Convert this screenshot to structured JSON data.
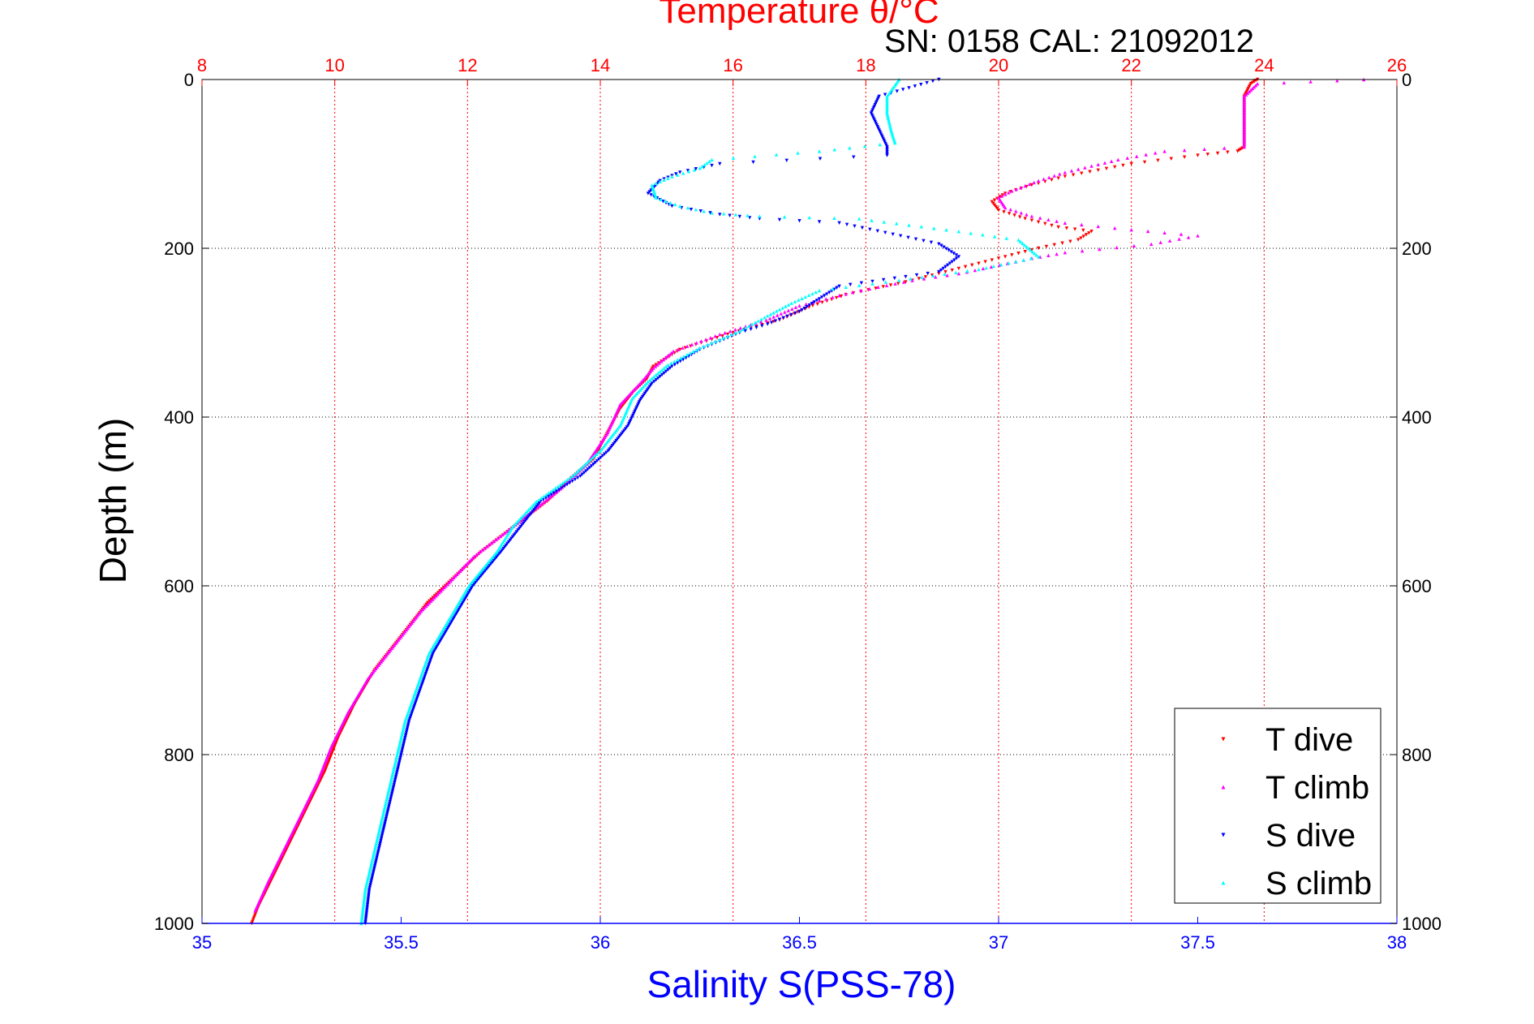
{
  "chart_data": {
    "type": "scatter",
    "title": "Temperature θ/°C",
    "subtitle": "SN: 0158  CAL: 21092012",
    "xlabel": "Salinity S(PSS-78)",
    "ylabel": "Depth (m)",
    "top_axis": {
      "label": "Temperature θ/°C",
      "range": [
        8,
        26
      ],
      "ticks": [
        "8",
        "10",
        "12",
        "14",
        "16",
        "18",
        "20",
        "22",
        "24",
        "26"
      ],
      "color": "#ff0000"
    },
    "bottom_axis": {
      "label": "Salinity S(PSS-78)",
      "range": [
        35,
        38
      ],
      "ticks": [
        "35",
        "35.5",
        "36",
        "36.5",
        "37",
        "37.5",
        "38"
      ],
      "color": "#0000ff"
    },
    "y_axis": {
      "range": [
        0,
        1000
      ],
      "reversed": true,
      "ticks": [
        "0",
        "200",
        "400",
        "600",
        "800",
        "1000"
      ]
    },
    "grid": true,
    "legend_placement": "bottom-right",
    "series": [
      {
        "name": "T dive",
        "axis": "top",
        "color": "#ff0000",
        "marker": "triangle-down",
        "points": [
          [
            23.9,
            0
          ],
          [
            23.8,
            5
          ],
          [
            23.7,
            20
          ],
          [
            23.7,
            40
          ],
          [
            23.7,
            60
          ],
          [
            23.7,
            80
          ],
          [
            23.6,
            85
          ],
          [
            23,
            90
          ],
          [
            22,
            100
          ],
          [
            21,
            115
          ],
          [
            20.5,
            125
          ],
          [
            20.1,
            135
          ],
          [
            19.9,
            145
          ],
          [
            20,
            155
          ],
          [
            20.4,
            165
          ],
          [
            20.9,
            175
          ],
          [
            21.4,
            180
          ],
          [
            21.2,
            190
          ],
          [
            20.6,
            200
          ],
          [
            20.1,
            210
          ],
          [
            19.6,
            220
          ],
          [
            19.2,
            228
          ],
          [
            18.6,
            240
          ],
          [
            17.7,
            255
          ],
          [
            17.2,
            268
          ],
          [
            16.7,
            285
          ],
          [
            16,
            300
          ],
          [
            15.2,
            320
          ],
          [
            14.8,
            340
          ],
          [
            14.7,
            355
          ],
          [
            14.5,
            370
          ],
          [
            14.3,
            390
          ],
          [
            14.1,
            420
          ],
          [
            13.9,
            450
          ],
          [
            13.6,
            470
          ],
          [
            13.2,
            500
          ],
          [
            12.7,
            530
          ],
          [
            12.2,
            560
          ],
          [
            11.8,
            590
          ],
          [
            11.4,
            620
          ],
          [
            11,
            660
          ],
          [
            10.6,
            700
          ],
          [
            10.3,
            740
          ],
          [
            10.05,
            780
          ],
          [
            9.85,
            820
          ],
          [
            9.6,
            860
          ],
          [
            9.35,
            900
          ],
          [
            9.1,
            940
          ],
          [
            8.85,
            980
          ],
          [
            8.75,
            1000
          ]
        ]
      },
      {
        "name": "T climb",
        "axis": "top",
        "color": "#ff00ff",
        "marker": "triangle-up",
        "points": [
          [
            25.5,
            0
          ],
          [
            23.9,
            5
          ],
          [
            23.7,
            20
          ],
          [
            23.7,
            40
          ],
          [
            23.7,
            60
          ],
          [
            23.7,
            80
          ],
          [
            22.5,
            85
          ],
          [
            21.8,
            95
          ],
          [
            21,
            110
          ],
          [
            20.6,
            120
          ],
          [
            20.2,
            132
          ],
          [
            20,
            140
          ],
          [
            20.1,
            152
          ],
          [
            20.5,
            162
          ],
          [
            21,
            170
          ],
          [
            22,
            178
          ],
          [
            23,
            185
          ],
          [
            22.3,
            195
          ],
          [
            21,
            205
          ],
          [
            20.5,
            212
          ],
          [
            19.4,
            230
          ],
          [
            18.7,
            238
          ],
          [
            17.8,
            252
          ],
          [
            17,
            268
          ],
          [
            16.5,
            285
          ],
          [
            15.8,
            302
          ],
          [
            15.1,
            322
          ],
          [
            14.8,
            342
          ],
          [
            14.6,
            360
          ],
          [
            14.3,
            385
          ],
          [
            14.1,
            420
          ],
          [
            13.8,
            455
          ],
          [
            13.4,
            485
          ],
          [
            13,
            510
          ],
          [
            12.6,
            535
          ],
          [
            12.1,
            565
          ],
          [
            11.7,
            598
          ],
          [
            11.3,
            630
          ],
          [
            10.9,
            670
          ],
          [
            10.5,
            710
          ],
          [
            10.2,
            750
          ],
          [
            9.95,
            790
          ],
          [
            9.75,
            830
          ],
          [
            9.5,
            870
          ],
          [
            9.25,
            910
          ],
          [
            9,
            950
          ],
          [
            8.8,
            985
          ]
        ]
      },
      {
        "name": "S dive",
        "axis": "bottom",
        "color": "#0000ff",
        "marker": "triangle-down",
        "points": [
          [
            36.85,
            0
          ],
          [
            36.7,
            20
          ],
          [
            36.68,
            40
          ],
          [
            36.7,
            60
          ],
          [
            36.72,
            80
          ],
          [
            36.72,
            90
          ],
          [
            36.3,
            100
          ],
          [
            36.2,
            110
          ],
          [
            36.15,
            120
          ],
          [
            36.12,
            135
          ],
          [
            36.18,
            150
          ],
          [
            36.3,
            160
          ],
          [
            36.4,
            165
          ],
          [
            36.6,
            170
          ],
          [
            36.85,
            195
          ],
          [
            36.9,
            210
          ],
          [
            36.85,
            228
          ],
          [
            36.6,
            245
          ],
          [
            36.55,
            260
          ],
          [
            36.5,
            275
          ],
          [
            36.42,
            290
          ],
          [
            36.35,
            300
          ],
          [
            36.25,
            320
          ],
          [
            36.18,
            340
          ],
          [
            36.13,
            360
          ],
          [
            36.1,
            380
          ],
          [
            36.07,
            410
          ],
          [
            36.02,
            440
          ],
          [
            35.95,
            470
          ],
          [
            35.85,
            500
          ],
          [
            35.8,
            530
          ],
          [
            35.75,
            560
          ],
          [
            35.68,
            600
          ],
          [
            35.63,
            640
          ],
          [
            35.58,
            680
          ],
          [
            35.55,
            720
          ],
          [
            35.52,
            760
          ],
          [
            35.5,
            800
          ],
          [
            35.48,
            840
          ],
          [
            35.46,
            880
          ],
          [
            35.44,
            920
          ],
          [
            35.42,
            960
          ],
          [
            35.41,
            1000
          ]
        ]
      },
      {
        "name": "S climb",
        "axis": "bottom",
        "color": "#00ffff",
        "marker": "triangle-up",
        "points": [
          [
            36.75,
            0
          ],
          [
            36.72,
            20
          ],
          [
            36.72,
            40
          ],
          [
            36.73,
            60
          ],
          [
            36.74,
            75
          ],
          [
            36.55,
            85
          ],
          [
            36.28,
            95
          ],
          [
            36.25,
            105
          ],
          [
            36.18,
            115
          ],
          [
            36.13,
            125
          ],
          [
            36.14,
            140
          ],
          [
            36.2,
            150
          ],
          [
            36.28,
            158
          ],
          [
            36.4,
            162
          ],
          [
            36.65,
            165
          ],
          [
            36.9,
            180
          ],
          [
            37.05,
            190
          ],
          [
            37.1,
            210
          ],
          [
            36.95,
            225
          ],
          [
            36.75,
            238
          ],
          [
            36.55,
            250
          ],
          [
            36.48,
            265
          ],
          [
            36.42,
            280
          ],
          [
            36.35,
            298
          ],
          [
            36.25,
            318
          ],
          [
            36.17,
            338
          ],
          [
            36.12,
            358
          ],
          [
            36.08,
            378
          ],
          [
            36.05,
            410
          ],
          [
            36,
            440
          ],
          [
            35.93,
            470
          ],
          [
            35.84,
            500
          ],
          [
            35.78,
            530
          ],
          [
            35.74,
            560
          ],
          [
            35.67,
            600
          ],
          [
            35.62,
            640
          ],
          [
            35.57,
            680
          ],
          [
            35.54,
            720
          ],
          [
            35.51,
            760
          ],
          [
            35.49,
            800
          ],
          [
            35.47,
            840
          ],
          [
            35.45,
            880
          ],
          [
            35.43,
            920
          ],
          [
            35.41,
            960
          ],
          [
            35.4,
            1000
          ]
        ]
      }
    ]
  }
}
